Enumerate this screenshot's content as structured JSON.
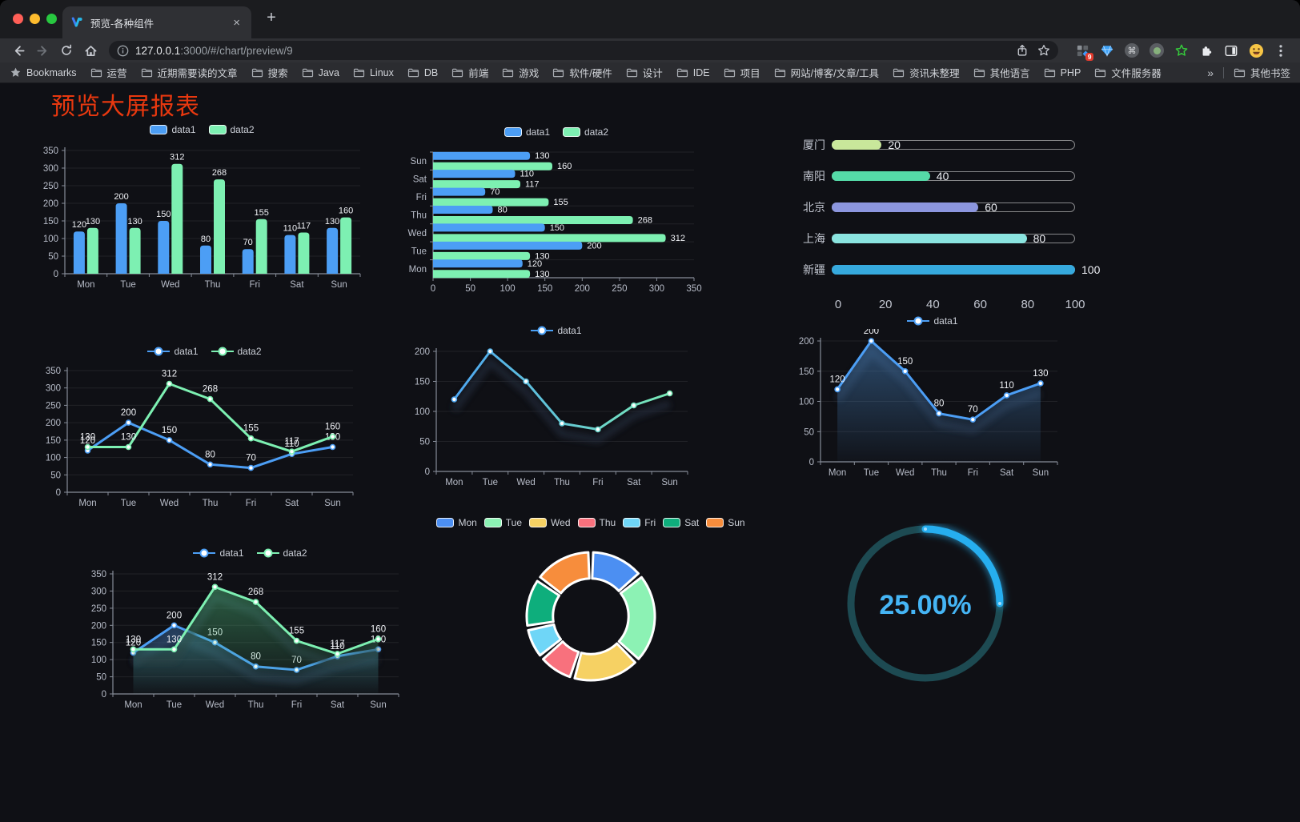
{
  "browser": {
    "traffic_lights": [
      "#ff5f57",
      "#febc2e",
      "#28c840"
    ],
    "tab": {
      "title": "预览-各种组件",
      "close_glyph": "×",
      "new_tab_glyph": "+"
    },
    "address": {
      "url_host": "127.0.0.1",
      "url_rest": ":3000/#/chart/preview/9"
    },
    "nav_icons": [
      "back-icon",
      "forward-icon",
      "reload-icon",
      "home-icon"
    ],
    "omnibox_icons": [
      "info-icon",
      "share-icon",
      "bookmark-star-icon"
    ],
    "extension_icons": [
      "extension-grid-icon",
      "gem-icon",
      "command-circle-icon",
      "record-circle-icon",
      "green-star-icon",
      "puzzle-icon",
      "sidebar-icon",
      "avatar-emoji-icon",
      "menu-dots-icon"
    ],
    "extension_badge": "9",
    "bookmarks": {
      "label": "Bookmarks",
      "items": [
        "运营",
        "近期需要读的文章",
        "搜索",
        "Java",
        "Linux",
        "DB",
        "前端",
        "游戏",
        "软件/硬件",
        "设计",
        "IDE",
        "项目",
        "网站/博客/文章/工具",
        "资讯未整理",
        "其他语言",
        "PHP",
        "文件服务器"
      ],
      "overflow": "»",
      "other": "其他书签"
    }
  },
  "page": {
    "title": "预览大屏报表",
    "title_color": "#e8380f",
    "background": "#0f1015"
  },
  "theme": {
    "blue": "#4c9ef5",
    "green": "#7df0b2",
    "axis": "#878d99",
    "tick_label": "#b7bcc8",
    "value_label": "#f0f2f6",
    "grid": "rgba(255,255,255,0.08)"
  },
  "chart_data": [
    {
      "id": "bar-grouped",
      "type": "bar",
      "legend_position": "top",
      "grid": true,
      "categories": [
        "Mon",
        "Tue",
        "Wed",
        "Thu",
        "Fri",
        "Sat",
        "Sun"
      ],
      "series": [
        {
          "name": "data1",
          "color": "#4c9ef5",
          "values": [
            120,
            200,
            150,
            80,
            70,
            110,
            130
          ]
        },
        {
          "name": "data2",
          "color": "#7df0b2",
          "values": [
            130,
            130,
            312,
            268,
            155,
            117,
            160
          ]
        }
      ],
      "ylim": [
        0,
        350
      ],
      "ytick_step": 50
    },
    {
      "id": "hbar-grouped",
      "type": "bar",
      "orientation": "horizontal",
      "legend_position": "top",
      "grid": true,
      "categories_bottom_to_top": [
        "Mon",
        "Tue",
        "Wed",
        "Thu",
        "Fri",
        "Sat",
        "Sun"
      ],
      "series": [
        {
          "name": "data1",
          "color": "#4c9ef5",
          "values": [
            120,
            200,
            150,
            80,
            70,
            110,
            130
          ]
        },
        {
          "name": "data2",
          "color": "#7df0b2",
          "values": [
            130,
            130,
            312,
            268,
            155,
            117,
            160
          ]
        }
      ],
      "xlim": [
        0,
        350
      ],
      "xtick_step": 50
    },
    {
      "id": "progress-bars",
      "type": "bar",
      "subtype": "horizontal-progress",
      "items": [
        {
          "label": "厦门",
          "value": 20,
          "color": "#c9e79b"
        },
        {
          "label": "南阳",
          "value": 40,
          "color": "#55dba8"
        },
        {
          "label": "北京",
          "value": 60,
          "color": "#8c96de"
        },
        {
          "label": "上海",
          "value": 80,
          "color": "#8ae4df"
        },
        {
          "label": "新疆",
          "value": 100,
          "color": "#36a9dd"
        }
      ],
      "xlim": [
        0,
        100
      ],
      "xticks": [
        0,
        20,
        40,
        60,
        80,
        100
      ]
    },
    {
      "id": "line-two",
      "type": "line",
      "legend_position": "top",
      "grid": true,
      "categories": [
        "Mon",
        "Tue",
        "Wed",
        "Thu",
        "Fri",
        "Sat",
        "Sun"
      ],
      "series": [
        {
          "name": "data1",
          "color": "#4c9ef5",
          "values": [
            120,
            200,
            150,
            80,
            70,
            110,
            130
          ],
          "labels": true
        },
        {
          "name": "data2",
          "color": "#7df0b2",
          "values": [
            130,
            130,
            312,
            268,
            155,
            117,
            160
          ],
          "labels": true
        }
      ],
      "ylim": [
        0,
        350
      ],
      "ytick_step": 50
    },
    {
      "id": "line-gradient",
      "type": "line",
      "legend_position": "top",
      "grid": true,
      "shadow": true,
      "categories": [
        "Mon",
        "Tue",
        "Wed",
        "Thu",
        "Fri",
        "Sat",
        "Sun"
      ],
      "series": [
        {
          "name": "data1",
          "gradient": [
            "#4aa0f5",
            "#7df0b2"
          ],
          "values": [
            120,
            200,
            150,
            80,
            70,
            110,
            130
          ],
          "labels": false
        }
      ],
      "ylim": [
        0,
        200
      ],
      "ytick_step": 50
    },
    {
      "id": "area-single",
      "type": "area",
      "legend_position": "top",
      "grid": true,
      "shadow": true,
      "categories": [
        "Mon",
        "Tue",
        "Wed",
        "Thu",
        "Fri",
        "Sat",
        "Sun"
      ],
      "series": [
        {
          "name": "data1",
          "color": "#4c9ef5",
          "area_top": "rgba(76,140,205,0.48)",
          "area_bottom": "rgba(76,140,205,0.03)",
          "values": [
            120,
            200,
            150,
            80,
            70,
            110,
            130
          ],
          "labels": true
        }
      ],
      "ylim": [
        0,
        200
      ],
      "ytick_step": 50
    },
    {
      "id": "area-two",
      "type": "area",
      "legend_position": "top",
      "grid": true,
      "shadow": true,
      "categories": [
        "Mon",
        "Tue",
        "Wed",
        "Thu",
        "Fri",
        "Sat",
        "Sun"
      ],
      "series": [
        {
          "name": "data1",
          "color": "#4c9ef5",
          "area_top": "rgba(66,125,190,0.42)",
          "area_bottom": "rgba(66,125,190,0.02)",
          "values": [
            120,
            200,
            150,
            80,
            70,
            110,
            130
          ],
          "labels": true
        },
        {
          "name": "data2",
          "color": "#7df0b2",
          "area_top": "rgba(80,190,125,0.45)",
          "area_bottom": "rgba(80,190,125,0.02)",
          "values": [
            130,
            130,
            312,
            268,
            155,
            117,
            160
          ],
          "labels": true
        }
      ],
      "ylim": [
        0,
        350
      ],
      "ytick_step": 50
    },
    {
      "id": "donut",
      "type": "pie",
      "legend_position": "top",
      "inner_radius_ratio": 0.59,
      "labels": [
        "Mon",
        "Tue",
        "Wed",
        "Thu",
        "Fri",
        "Sat",
        "Sun"
      ],
      "values": [
        120,
        200,
        150,
        80,
        70,
        110,
        130
      ],
      "colors": [
        "#4c8ff2",
        "#8cf2b4",
        "#f6d163",
        "#f8717d",
        "#6fd6f7",
        "#0eae7c",
        "#f78d3c"
      ],
      "border_color": "#ffffff"
    },
    {
      "id": "gauge",
      "type": "gauge",
      "value_percent": 25,
      "display": "25.00%",
      "arc_color": "#27aeef",
      "track_color": "#1d4a52",
      "text_color": "#45b5f5"
    }
  ]
}
